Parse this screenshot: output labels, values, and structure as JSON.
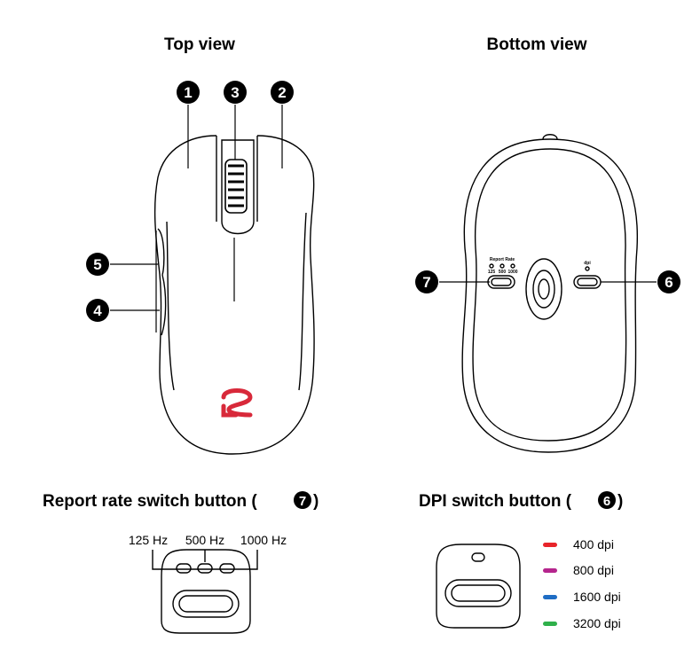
{
  "titles": {
    "top_view": "Top view",
    "bottom_view": "Bottom view",
    "report_rate_section": "Report rate switch button (",
    "report_rate_num": "7",
    "dpi_section": "DPI switch button (",
    "dpi_num": "6",
    "close_paren": ")"
  },
  "callouts": {
    "n1": "1",
    "n2": "2",
    "n3": "3",
    "n4": "4",
    "n5": "5",
    "n6": "6",
    "n7": "7"
  },
  "bottom_labels": {
    "report_rate": "Report Rate",
    "rate_125": "125",
    "rate_500": "500",
    "rate_1000": "1000",
    "dpi": "dpi"
  },
  "report_rate": {
    "options": [
      "125 Hz",
      "500 Hz",
      "1000 Hz"
    ]
  },
  "dpi": {
    "levels": [
      {
        "label": "400 dpi",
        "color": "#e8242a"
      },
      {
        "label": "800 dpi",
        "color": "#b5258d"
      },
      {
        "label": "1600 dpi",
        "color": "#1f6dc4"
      },
      {
        "label": "3200 dpi",
        "color": "#2fb04a"
      }
    ]
  },
  "logo_color": "#d8293a"
}
